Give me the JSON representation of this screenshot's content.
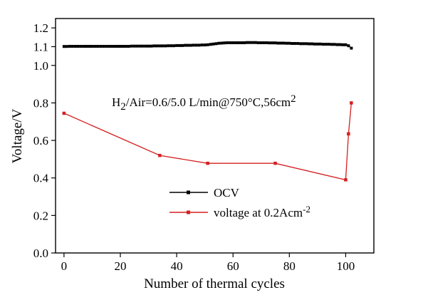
{
  "chart_data": {
    "type": "line",
    "xlabel": "Number of thermal cycles",
    "ylabel": "Voltage/V",
    "xlim": [
      -3,
      110
    ],
    "ylim": [
      0.0,
      1.25
    ],
    "x_ticks": [
      0,
      20,
      40,
      60,
      80,
      100
    ],
    "x_tick_labels": [
      "0",
      "20",
      "40",
      "60",
      "80",
      "100"
    ],
    "y_ticks": [
      0.0,
      0.2,
      0.4,
      0.6,
      0.8,
      1.0,
      1.1,
      1.2
    ],
    "y_tick_labels": [
      "0.0",
      "0.2",
      "0.4",
      "0.6",
      "0.8",
      "1.0",
      "1.1",
      "1.2"
    ],
    "grid": false,
    "legend_position": "bottom-center",
    "annotation": {
      "prefix": "H",
      "sub": "2",
      "middle": "/Air=0.6/5.0 L/min@750°C,56cm",
      "sup": "2"
    },
    "series": [
      {
        "name": "OCV",
        "color": "#000000",
        "marker": "square",
        "x": [
          0,
          1,
          2,
          3,
          4,
          5,
          6,
          7,
          8,
          9,
          10,
          11,
          12,
          13,
          14,
          15,
          16,
          17,
          18,
          19,
          20,
          21,
          22,
          23,
          24,
          25,
          26,
          27,
          28,
          29,
          30,
          31,
          32,
          33,
          34,
          35,
          36,
          37,
          38,
          39,
          40,
          41,
          42,
          43,
          44,
          45,
          46,
          47,
          48,
          49,
          50,
          51,
          52,
          53,
          54,
          55,
          56,
          57,
          58,
          59,
          60,
          61,
          62,
          63,
          64,
          65,
          66,
          67,
          68,
          69,
          70,
          71,
          72,
          73,
          74,
          75,
          76,
          77,
          78,
          79,
          80,
          81,
          82,
          83,
          84,
          85,
          86,
          87,
          88,
          89,
          90,
          91,
          92,
          93,
          94,
          95,
          96,
          97,
          98,
          99,
          100,
          101,
          102
        ],
        "values": [
          1.101,
          1.101,
          1.102,
          1.102,
          1.102,
          1.102,
          1.102,
          1.102,
          1.102,
          1.102,
          1.102,
          1.102,
          1.102,
          1.102,
          1.102,
          1.102,
          1.102,
          1.102,
          1.102,
          1.102,
          1.102,
          1.102,
          1.102,
          1.102,
          1.103,
          1.103,
          1.103,
          1.103,
          1.103,
          1.103,
          1.103,
          1.103,
          1.104,
          1.104,
          1.104,
          1.104,
          1.104,
          1.105,
          1.105,
          1.105,
          1.106,
          1.106,
          1.106,
          1.107,
          1.107,
          1.107,
          1.108,
          1.108,
          1.108,
          1.109,
          1.109,
          1.11,
          1.112,
          1.114,
          1.116,
          1.118,
          1.119,
          1.12,
          1.121,
          1.121,
          1.121,
          1.121,
          1.121,
          1.121,
          1.121,
          1.122,
          1.122,
          1.122,
          1.122,
          1.121,
          1.121,
          1.121,
          1.121,
          1.12,
          1.12,
          1.12,
          1.119,
          1.119,
          1.119,
          1.118,
          1.118,
          1.117,
          1.117,
          1.117,
          1.116,
          1.116,
          1.116,
          1.115,
          1.115,
          1.114,
          1.114,
          1.114,
          1.113,
          1.113,
          1.113,
          1.112,
          1.112,
          1.111,
          1.111,
          1.11,
          1.11,
          1.105,
          1.092
        ]
      },
      {
        "name": "voltage at 0.2Acm",
        "name_sup": "-2",
        "color": "#d42020",
        "marker": "square",
        "x": [
          0,
          34,
          51,
          75,
          100,
          101,
          102
        ],
        "values": [
          0.745,
          0.52,
          0.478,
          0.478,
          0.39,
          0.635,
          0.8
        ]
      }
    ]
  }
}
